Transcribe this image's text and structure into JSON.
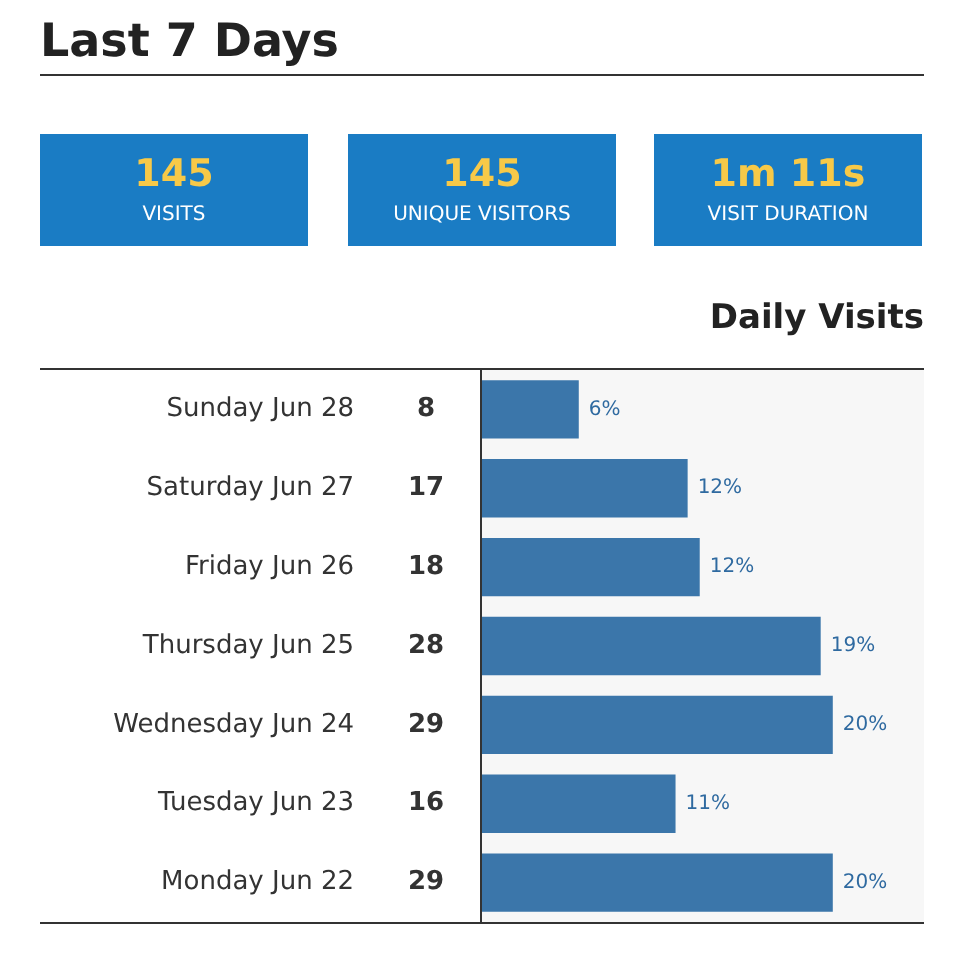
{
  "chart_data": [
    {
      "type": "other",
      "title": "Last 7 Days",
      "annotations": [
        "145",
        "VISITS",
        "145",
        "UNIQUE VISITORS",
        "1m 11s",
        "VISIT DURATION"
      ]
    },
    {
      "type": "bar",
      "title": "Daily Visits",
      "orientation": "horizontal",
      "categories": [
        "Sunday Jun 28",
        "Saturday Jun 27",
        "Friday Jun 26",
        "Thursday Jun 25",
        "Wednesday Jun 24",
        "Tuesday Jun 23",
        "Monday Jun 22"
      ],
      "values": [
        8,
        17,
        18,
        28,
        29,
        16,
        29
      ],
      "color": "#3b76aa",
      "value_labels": [
        "8",
        "17",
        "18",
        "28",
        "29",
        "16",
        "29"
      ],
      "annotations": [
        {
          "text": "6%",
          "x": 8,
          "y": "Sunday Jun 28"
        },
        {
          "text": "12%",
          "x": 17,
          "y": "Saturday Jun 27"
        },
        {
          "text": "12%",
          "x": 18,
          "y": "Friday Jun 26"
        },
        {
          "text": "19%",
          "x": 28,
          "y": "Thursday Jun 25"
        },
        {
          "text": "20%",
          "x": 29,
          "y": "Wednesday Jun 24"
        },
        {
          "text": "11%",
          "x": 16,
          "y": "Tuesday Jun 23"
        },
        {
          "text": "20%",
          "x": 29,
          "y": "Monday Jun 22"
        }
      ]
    }
  ]
}
